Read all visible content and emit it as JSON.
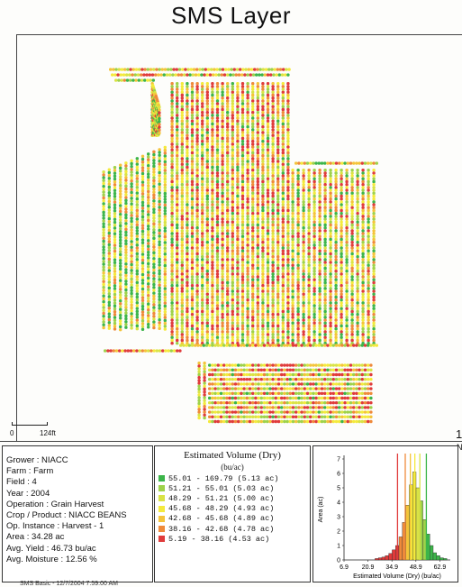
{
  "page": {
    "title": "SMS Layer"
  },
  "map": {
    "scale_zero": "0",
    "scale_label": "124ft",
    "edge_number": "1",
    "edge_letter": "N"
  },
  "field_info": [
    "Grower : NIACC",
    "Farm  : Farm",
    "Field : 4",
    "Year : 2004",
    "Operation  : Grain Harvest",
    "Crop / Product : NIACC  BEANS",
    "Op. Instance : Harvest - 1",
    "Area : 34.28 ac",
    "Avg. Yield : 46.73 bu/ac",
    "Avg. Moisture : 12.56 %"
  ],
  "legend": {
    "title": "Estimated Volume (Dry)",
    "unit": "(bu/ac)",
    "rows": [
      {
        "range": "55.01 - 169.79 (5.13 ac)",
        "color": "#3cb54a"
      },
      {
        "range": "51.21 - 55.01 (5.03 ac)",
        "color": "#9ed24a"
      },
      {
        "range": "48.29 - 51.21 (5.00 ac)",
        "color": "#d9e345"
      },
      {
        "range": "45.68 - 48.29 (4.93 ac)",
        "color": "#f4ea3c"
      },
      {
        "range": "42.68 - 45.68 (4.89 ac)",
        "color": "#f4c43a"
      },
      {
        "range": "38.16 - 42.68 (4.78 ac)",
        "color": "#ef8a3a"
      },
      {
        "range": "5.19 - 38.16 (4.53 ac)",
        "color": "#e03b3b"
      }
    ]
  },
  "chart_data": {
    "type": "bar",
    "xlabel": "Estimated Volume (Dry) (bu/ac)",
    "ylabel": "Area (ac)",
    "xlim": [
      6.9,
      69
    ],
    "ylim": [
      0,
      7
    ],
    "x_ticks": [
      "6.9",
      "20.9",
      "34.9",
      "48.9",
      "62.9"
    ],
    "y_ticks": [
      "0",
      "1",
      "2",
      "3",
      "4",
      "5",
      "6",
      "7"
    ],
    "bin_width": 2,
    "bin_start": [
      25,
      27,
      29,
      31,
      33,
      35,
      37,
      39,
      41,
      43,
      45,
      47,
      49,
      51,
      53,
      55,
      57,
      59,
      61,
      63,
      65
    ],
    "values": [
      0.1,
      0.15,
      0.2,
      0.3,
      0.45,
      0.7,
      1.0,
      1.6,
      2.6,
      3.8,
      5.2,
      6.1,
      5.0,
      4.1,
      2.8,
      1.8,
      1.0,
      0.5,
      0.3,
      0.15,
      0.1
    ],
    "bar_colors": [
      "#e03b3b",
      "#ef8a3a",
      "#f4c43a",
      "#f4ea3c",
      "#d9e345",
      "#9ed24a",
      "#3cb54a"
    ],
    "threshold_lines": [
      {
        "value": 38.16,
        "color": "#e03b3b"
      },
      {
        "value": 42.68,
        "color": "#ef8a3a"
      },
      {
        "value": 45.68,
        "color": "#f4c43a"
      },
      {
        "value": 48.29,
        "color": "#f4ea3c"
      },
      {
        "value": 51.21,
        "color": "#d9e345"
      },
      {
        "value": 55.01,
        "color": "#3cb54a"
      }
    ]
  },
  "footer": {
    "text": "SMS Basic - 12/7/2004 7:59:00 AM"
  }
}
